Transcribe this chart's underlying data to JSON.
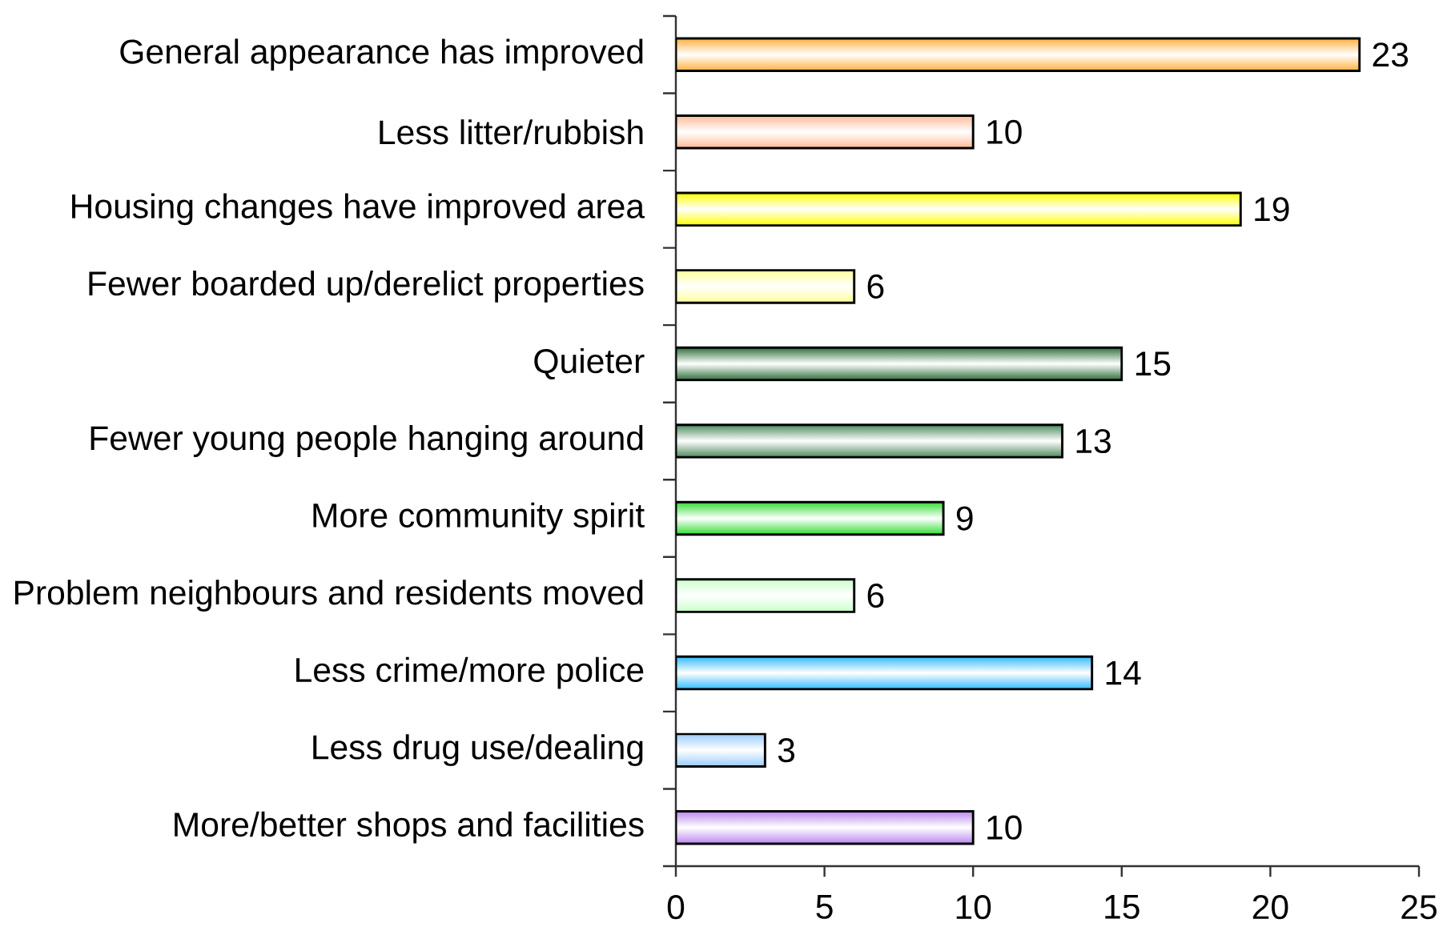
{
  "chart_data": {
    "type": "bar",
    "orientation": "horizontal",
    "categories": [
      "General appearance has improved",
      "Less litter/rubbish",
      "Housing changes have improved area",
      "Fewer boarded up/derelict properties",
      "Quieter",
      "Fewer young people hanging around",
      "More community spirit",
      "Problem neighbours and residents moved",
      "Less crime/more police",
      "Less drug use/dealing",
      "More/better shops and facilities"
    ],
    "values": [
      23,
      10,
      19,
      6,
      15,
      13,
      9,
      6,
      14,
      3,
      10
    ],
    "colors": [
      "#ffb040",
      "#ffbb99",
      "#ffff00",
      "#ffff99",
      "#2f6f3a",
      "#4d8a5c",
      "#33dd33",
      "#ccffcc",
      "#33bbff",
      "#99ccff",
      "#bb88ee"
    ],
    "xlim": [
      0,
      25
    ],
    "xticks": [
      0,
      5,
      10,
      15,
      20,
      25
    ],
    "data_labels": true,
    "grid": false
  }
}
